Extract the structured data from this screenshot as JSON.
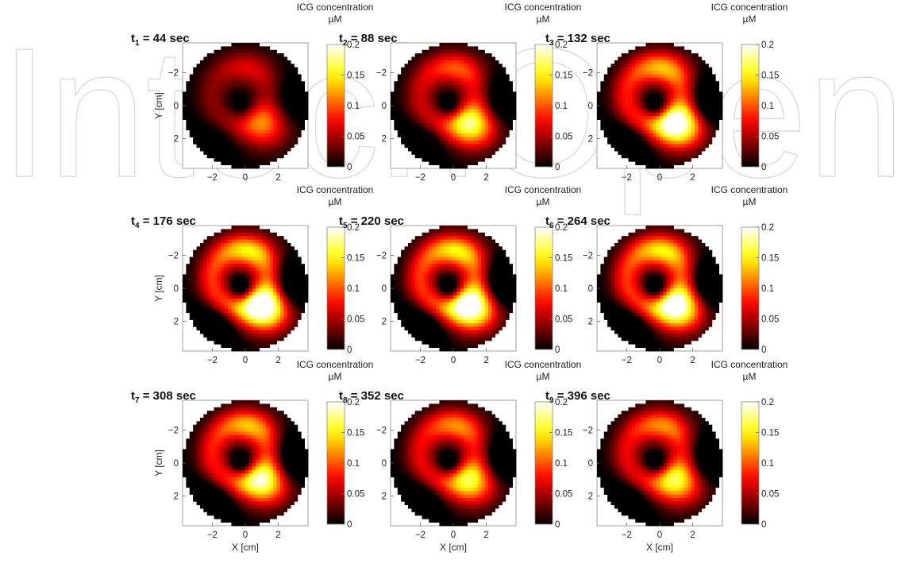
{
  "chart_data": {
    "type": "heatmap",
    "grid": {
      "rows": 3,
      "cols": 3
    },
    "xlabel": "X [cm]",
    "ylabel": "Y [cm]",
    "xlim": [
      -3.8,
      3.8
    ],
    "ylim": [
      -3.8,
      3.8
    ],
    "y_reversed": true,
    "xticks": [
      -2,
      0,
      2
    ],
    "yticks": [
      -2,
      0,
      2
    ],
    "domain": "circle",
    "domain_radius": 3.8,
    "colormap": "hot",
    "colorbar": {
      "title_line1": "ICG concentration",
      "title_line2": "µM",
      "min": 0,
      "max": 0.2,
      "ticks": [
        "0",
        "0.05",
        "0.1",
        "0.15",
        "0.2"
      ]
    },
    "panels": [
      {
        "t": "1",
        "label": " = 44 sec",
        "time_sec": 44,
        "peak": 0.09,
        "ring": 0.04
      },
      {
        "t": "2",
        "label": " = 88 sec",
        "time_sec": 88,
        "peak": 0.14,
        "ring": 0.06
      },
      {
        "t": "3",
        "label": " = 132 sec",
        "time_sec": 132,
        "peak": 0.18,
        "ring": 0.08
      },
      {
        "t": "4",
        "label": " = 176 sec",
        "time_sec": 176,
        "peak": 0.19,
        "ring": 0.09
      },
      {
        "t": "5",
        "label": " = 220 sec",
        "time_sec": 220,
        "peak": 0.18,
        "ring": 0.09
      },
      {
        "t": "6",
        "label": " = 264 sec",
        "time_sec": 264,
        "peak": 0.17,
        "ring": 0.09
      },
      {
        "t": "7",
        "label": " = 308 sec",
        "time_sec": 308,
        "peak": 0.14,
        "ring": 0.08
      },
      {
        "t": "8",
        "label": " = 352 sec",
        "time_sec": 352,
        "peak": 0.12,
        "ring": 0.07
      },
      {
        "t": "9",
        "label": " = 396 sec",
        "time_sec": 396,
        "peak": 0.12,
        "ring": 0.07
      }
    ]
  },
  "watermark": {
    "text": "IntechOpen",
    "color": "#d9d9d9"
  }
}
